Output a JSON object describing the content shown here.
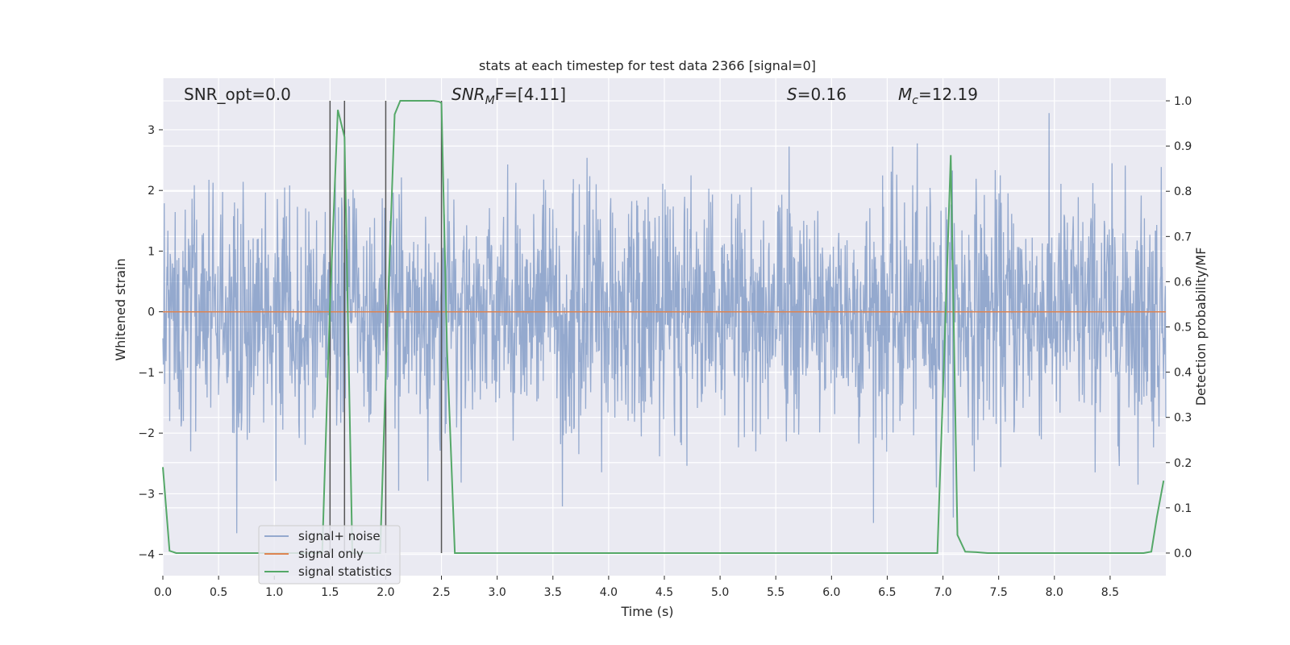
{
  "chart_data": {
    "type": "line",
    "title": "stats at each timestep for test data 2366 [signal=0]",
    "xlabel": "Time (s)",
    "ylabel_left": "Whitened strain",
    "ylabel_right": "Detection probability/MF",
    "xlim": [
      0.0,
      9.0
    ],
    "ylim_left": [
      -4.35,
      3.85
    ],
    "ylim_right": [
      -0.05,
      1.05
    ],
    "x_ticks": [
      0.0,
      0.5,
      1.0,
      1.5,
      2.0,
      2.5,
      3.0,
      3.5,
      4.0,
      4.5,
      5.0,
      5.5,
      6.0,
      6.5,
      7.0,
      7.5,
      8.0,
      8.5
    ],
    "x_tick_labels": [
      "0.0",
      "0.5",
      "1.0",
      "1.5",
      "2.0",
      "2.5",
      "3.0",
      "3.5",
      "4.0",
      "4.5",
      "5.0",
      "5.5",
      "6.0",
      "6.5",
      "7.0",
      "7.5",
      "8.0",
      "8.5"
    ],
    "y_left_ticks": [
      -4,
      -3,
      -2,
      -1,
      0,
      1,
      2,
      3
    ],
    "y_left_tick_labels": [
      "−4",
      "−3",
      "−2",
      "−1",
      "0",
      "1",
      "2",
      "3"
    ],
    "y_right_ticks": [
      0.0,
      0.1,
      0.2,
      0.3,
      0.4,
      0.5,
      0.6,
      0.7,
      0.8,
      0.9,
      1.0
    ],
    "y_right_tick_labels": [
      "0.0",
      "0.1",
      "0.2",
      "0.3",
      "0.4",
      "0.5",
      "0.6",
      "0.7",
      "0.8",
      "0.9",
      "1.0"
    ],
    "grid": true,
    "legend_position": "lower-left",
    "annotations": {
      "snr_opt": "SNR_opt=0.0",
      "snr_mf_base": "SNR",
      "snr_mf_sub": "M",
      "snr_mf_rest": "F=[4.11]",
      "s_base": "S",
      "s_rest": "=0.16",
      "mc_base": "M",
      "mc_sub": "c",
      "mc_rest": "=12.19"
    },
    "series": [
      {
        "name": "signal+ noise",
        "axis": "left",
        "color": "#4c72b0",
        "opacity": 0.55,
        "noise": {
          "x_start": 0.0,
          "x_end": 9.0,
          "samples": 2200,
          "sigma": 1.0,
          "y_min": -3.65,
          "y_max": 3.45
        }
      },
      {
        "name": "signal only",
        "axis": "left",
        "color": "#dd8452",
        "x": [
          0.0,
          9.0
        ],
        "y": [
          0.0,
          0.0
        ]
      },
      {
        "name": "signal statistics",
        "axis": "right",
        "color": "#55a868",
        "x": [
          0.0,
          0.06,
          0.12,
          0.18,
          1.43,
          1.5,
          1.57,
          1.63,
          1.7,
          1.95,
          2.02,
          2.08,
          2.13,
          2.43,
          2.48,
          2.5,
          2.55,
          2.62,
          6.95,
          7.02,
          7.07,
          7.13,
          7.2,
          7.3,
          7.4,
          8.8,
          8.87,
          8.92,
          8.98
        ],
        "y": [
          0.19,
          0.005,
          0.0,
          0.0,
          0.0,
          0.55,
          0.98,
          0.92,
          0.0,
          0.0,
          0.55,
          0.97,
          1.0,
          1.0,
          0.998,
          0.995,
          0.45,
          0.0,
          0.0,
          0.5,
          0.88,
          0.04,
          0.003,
          0.002,
          0.0,
          0.0,
          0.003,
          0.08,
          0.16
        ]
      }
    ],
    "vertical_lines": {
      "color": "#555555",
      "x": [
        1.5,
        1.63,
        2.0,
        2.5
      ],
      "y_top": 1.0,
      "y_bottom": 0.0
    }
  }
}
